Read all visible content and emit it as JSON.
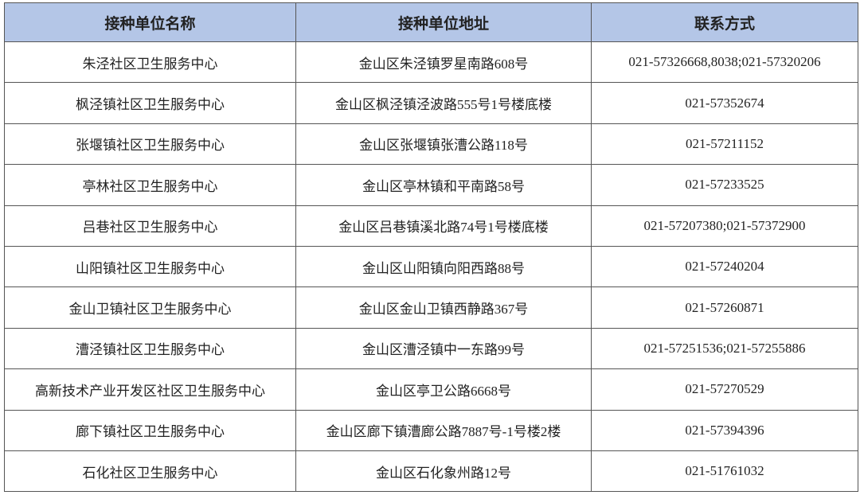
{
  "table": {
    "headers": [
      "接种单位名称",
      "接种单位地址",
      "联系方式"
    ],
    "rows": [
      [
        "朱泾社区卫生服务中心",
        "金山区朱泾镇罗星南路608号",
        "021-57326668,8038;021-57320206"
      ],
      [
        "枫泾镇社区卫生服务中心",
        "金山区枫泾镇泾波路555号1号楼底楼",
        "021-57352674"
      ],
      [
        "张堰镇社区卫生服务中心",
        "金山区张堰镇张漕公路118号",
        "021-57211152"
      ],
      [
        "亭林社区卫生服务中心",
        "金山区亭林镇和平南路58号",
        "021-57233525"
      ],
      [
        "吕巷社区卫生服务中心",
        "金山区吕巷镇溪北路74号1号楼底楼",
        "021-57207380;021-57372900"
      ],
      [
        "山阳镇社区卫生服务中心",
        "金山区山阳镇向阳西路88号",
        "021-57240204"
      ],
      [
        "金山卫镇社区卫生服务中心",
        "金山区金山卫镇西静路367号",
        "021-57260871"
      ],
      [
        "漕泾镇社区卫生服务中心",
        "金山区漕泾镇中一东路99号",
        "021-57251536;021-57255886"
      ],
      [
        "高新技术产业开发区社区卫生服务中心",
        "金山区亭卫公路6668号",
        "021-57270529"
      ],
      [
        "廊下镇社区卫生服务中心",
        "金山区廊下镇漕廊公路7887号-1号楼2楼",
        "021-57394396"
      ],
      [
        "石化社区卫生服务中心",
        "金山区石化象州路12号",
        "021-51761032"
      ]
    ]
  }
}
